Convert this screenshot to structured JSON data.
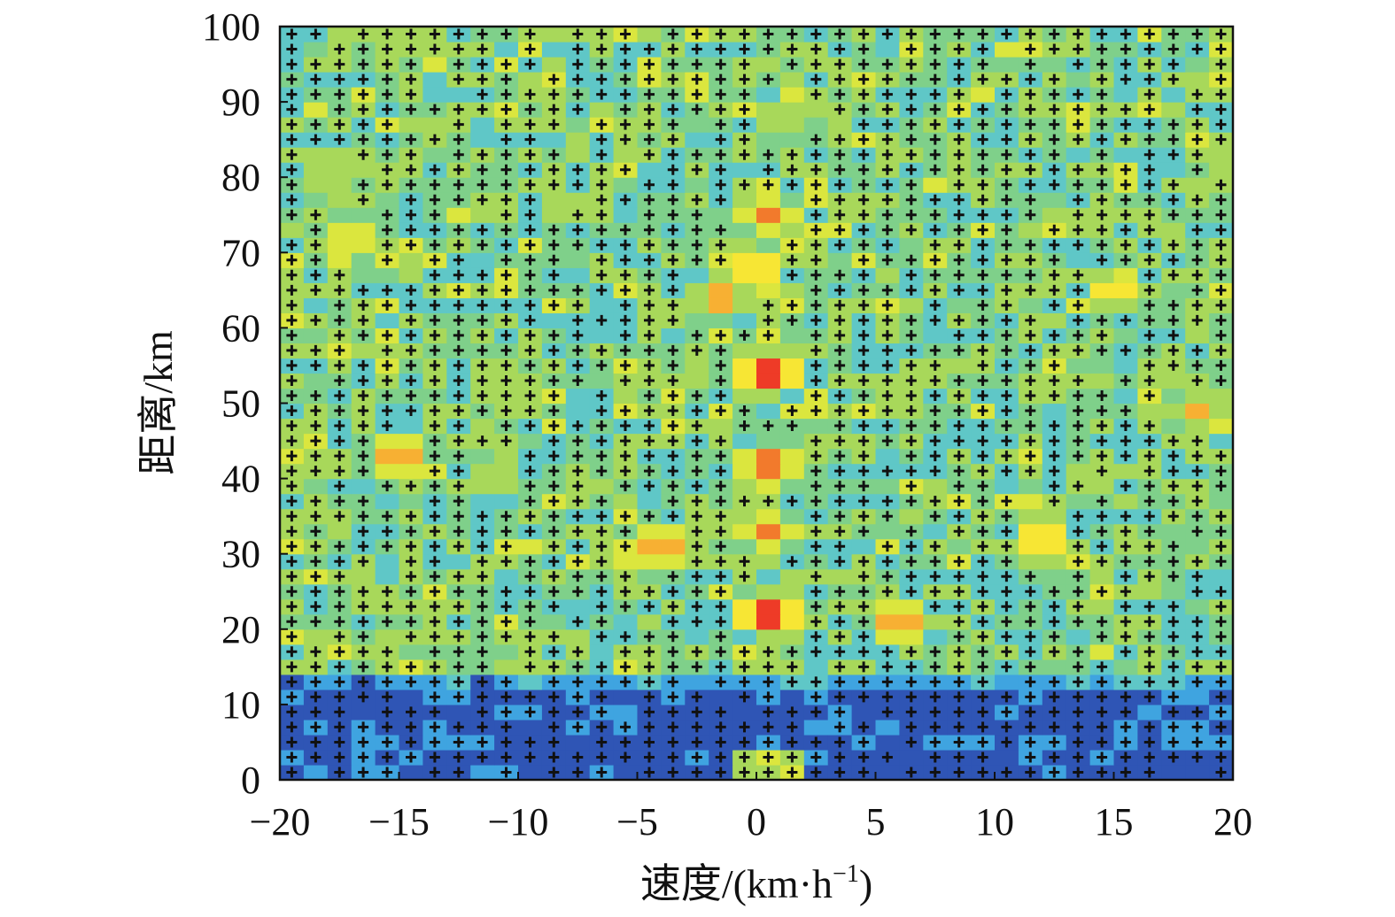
{
  "chart_data": {
    "type": "heatmap",
    "title": "",
    "xlabel": "速度/(km·h",
    "xlabel_sup": "−1",
    "xlabel_close": ")",
    "ylabel": "距离/km",
    "xlim": [
      -20,
      20
    ],
    "ylim": [
      0,
      100
    ],
    "x_ticks": [
      -20,
      -15,
      -10,
      -5,
      0,
      5,
      10,
      15,
      20
    ],
    "x_tick_labels": [
      "−20",
      "−15",
      "−10",
      "−5",
      "0",
      "5",
      "10",
      "15",
      "20"
    ],
    "y_ticks": [
      0,
      10,
      20,
      30,
      40,
      50,
      60,
      70,
      80,
      90,
      100
    ],
    "y_tick_labels": [
      "0",
      "10",
      "20",
      "30",
      "40",
      "50",
      "60",
      "70",
      "80",
      "90",
      "100"
    ],
    "grid": false,
    "marker": "+",
    "colormap": [
      "#27337a",
      "#2f55b5",
      "#3fa4e0",
      "#5fc7c7",
      "#7fd08a",
      "#a8d85a",
      "#dbe63e",
      "#f7e634",
      "#f7b033",
      "#f27a2c",
      "#ee3b27",
      "#c81e22"
    ],
    "hotspots": [
      {
        "v": 0.5,
        "r": 22,
        "value": 1.0
      },
      {
        "v": 0.5,
        "r": 54,
        "value": 0.96
      },
      {
        "v": 0.5,
        "r": 42,
        "value": 0.85
      },
      {
        "v": 0.5,
        "r": 33,
        "value": 0.82
      },
      {
        "v": 0.5,
        "r": 75,
        "value": 0.8
      },
      {
        "v": 0.0,
        "r": 68,
        "value": 0.78
      },
      {
        "v": -1.5,
        "r": 64,
        "value": 0.75
      },
      {
        "v": 1.0,
        "r": 88,
        "value": 0.6
      },
      {
        "v": 6.0,
        "r": 21,
        "value": 0.85
      },
      {
        "v": -15.0,
        "r": 43,
        "value": 0.8
      },
      {
        "v": -4.0,
        "r": 31,
        "value": 0.78
      },
      {
        "v": 12.0,
        "r": 32,
        "value": 0.75
      },
      {
        "v": 15.0,
        "r": 65,
        "value": 0.75
      },
      {
        "v": -17.0,
        "r": 72,
        "value": 0.7
      },
      {
        "v": -18.0,
        "r": 80,
        "value": 0.6
      },
      {
        "v": -16.0,
        "r": 81,
        "value": 0.55
      },
      {
        "v": -11.0,
        "r": 51,
        "value": 0.55
      },
      {
        "v": -11.0,
        "r": 40,
        "value": 0.6
      },
      {
        "v": 18.5,
        "r": 49,
        "value": 0.7
      },
      {
        "v": 11.0,
        "r": 65,
        "value": 0.5
      },
      {
        "v": 19.5,
        "r": 84,
        "value": 0.5
      },
      {
        "v": -19.5,
        "r": 62,
        "value": 0.45
      }
    ],
    "low_band": {
      "r_max": 15,
      "value": 0.0
    },
    "center_column_low": {
      "v_min": -1.0,
      "v_max": 1.8,
      "r_max": 5,
      "value": 0.45
    }
  }
}
